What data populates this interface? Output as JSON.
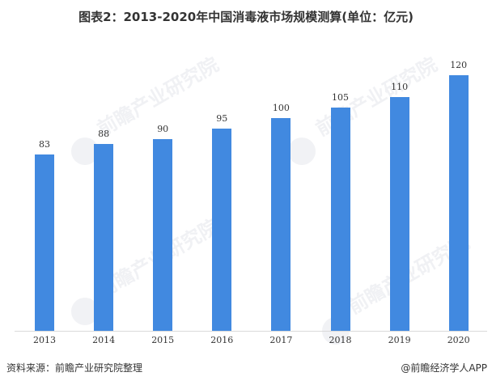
{
  "title": "图表2：2013-2020年中国消毒液市场规模测算(单位：亿元)",
  "source": "资料来源：前瞻产业研究院整理",
  "credit": "@前瞻经济学人APP",
  "watermark": "前瞻产业研究院",
  "colors": {
    "bar": "#4189e0",
    "axis": "#d9d9d9",
    "text": "#333333"
  },
  "chart_data": {
    "type": "bar",
    "title": "图表2：2013-2020年中国消毒液市场规模测算(单位：亿元)",
    "xlabel": "",
    "ylabel": "",
    "unit": "亿元",
    "categories": [
      "2013",
      "2014",
      "2015",
      "2016",
      "2017",
      "2018",
      "2019",
      "2020"
    ],
    "values": [
      83,
      88,
      90,
      95,
      100,
      105,
      110,
      120
    ],
    "data_labels": [
      "83",
      "88",
      "90",
      "95",
      "100",
      "105",
      "110",
      "120"
    ],
    "ylim": [
      0,
      130
    ],
    "grid": false,
    "legend": null
  }
}
